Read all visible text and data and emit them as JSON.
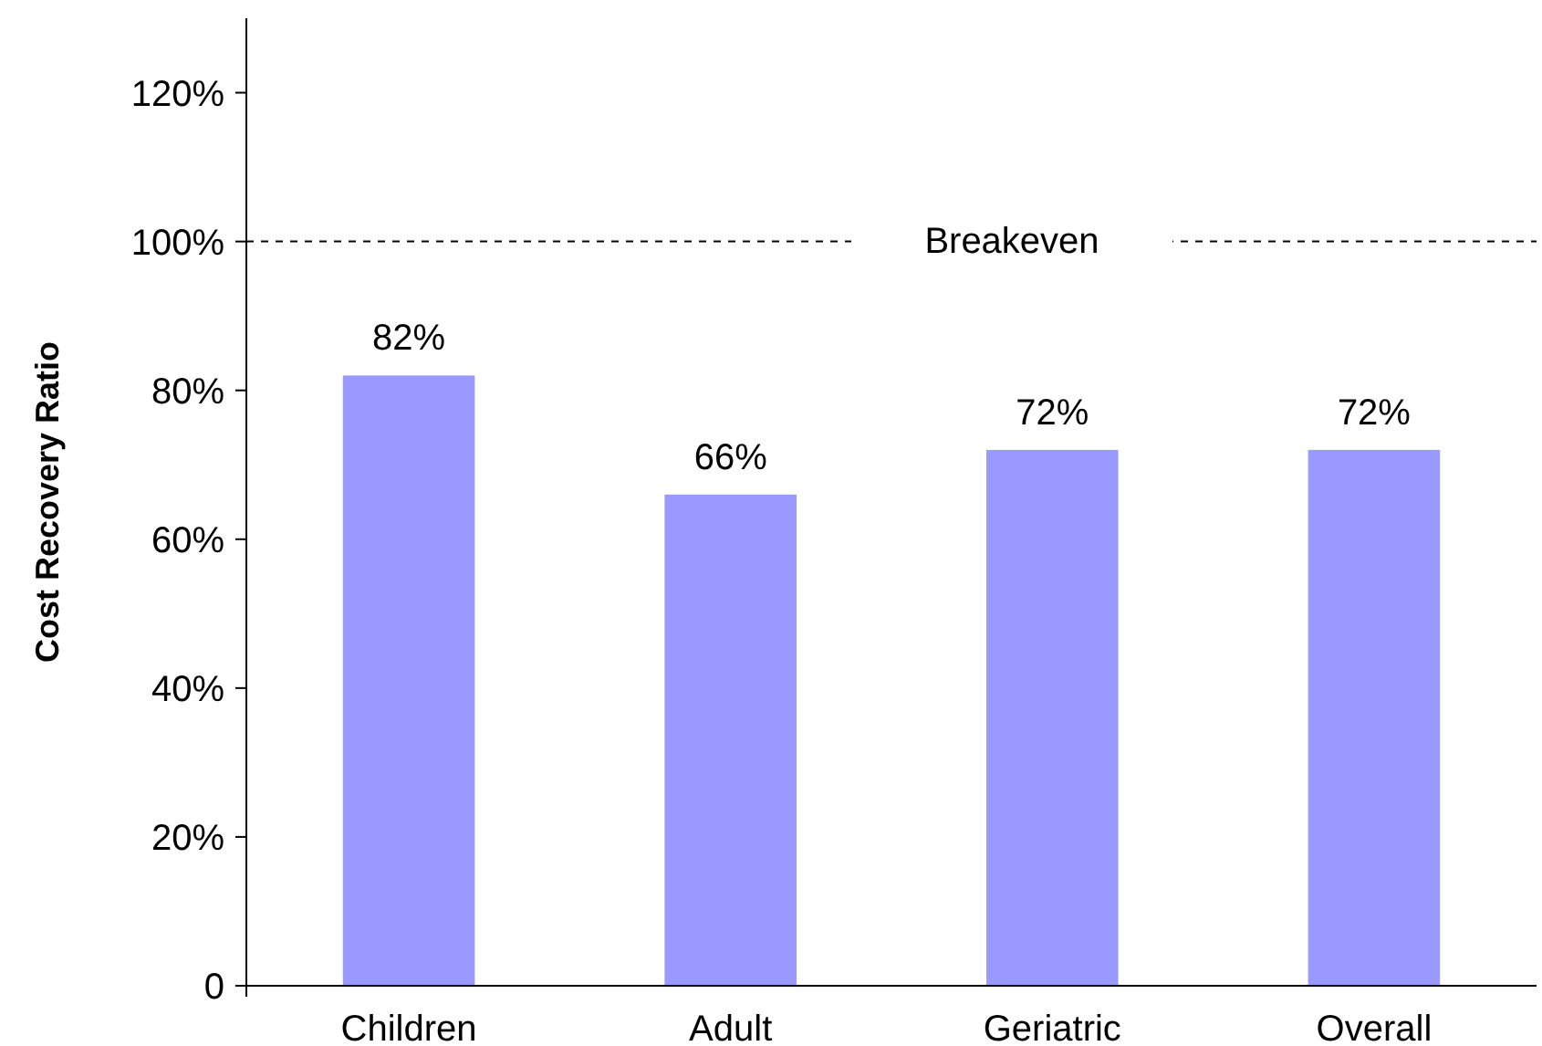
{
  "chart_data": {
    "type": "bar",
    "ylabel": "Cost Recovery Ratio",
    "categories": [
      "Children",
      "Adult",
      "Geriatric",
      "Overall"
    ],
    "values": [
      82,
      66,
      72,
      72
    ],
    "color": "#9999ff",
    "value_labels": [
      "82%",
      "66%",
      "72%",
      "72%"
    ],
    "ylim": [
      0,
      130
    ],
    "yticks": [
      {
        "value": 0,
        "label": "0"
      },
      {
        "value": 20,
        "label": "20%"
      },
      {
        "value": 40,
        "label": "40%"
      },
      {
        "value": 60,
        "label": "60%"
      },
      {
        "value": 80,
        "label": "80%"
      },
      {
        "value": 100,
        "label": "100%"
      },
      {
        "value": 120,
        "label": "120%"
      }
    ],
    "ref_lines": [
      {
        "axis": "y",
        "value": 100,
        "label": "Breakeven",
        "color": "#000000",
        "line_style": "dashed"
      }
    ]
  }
}
